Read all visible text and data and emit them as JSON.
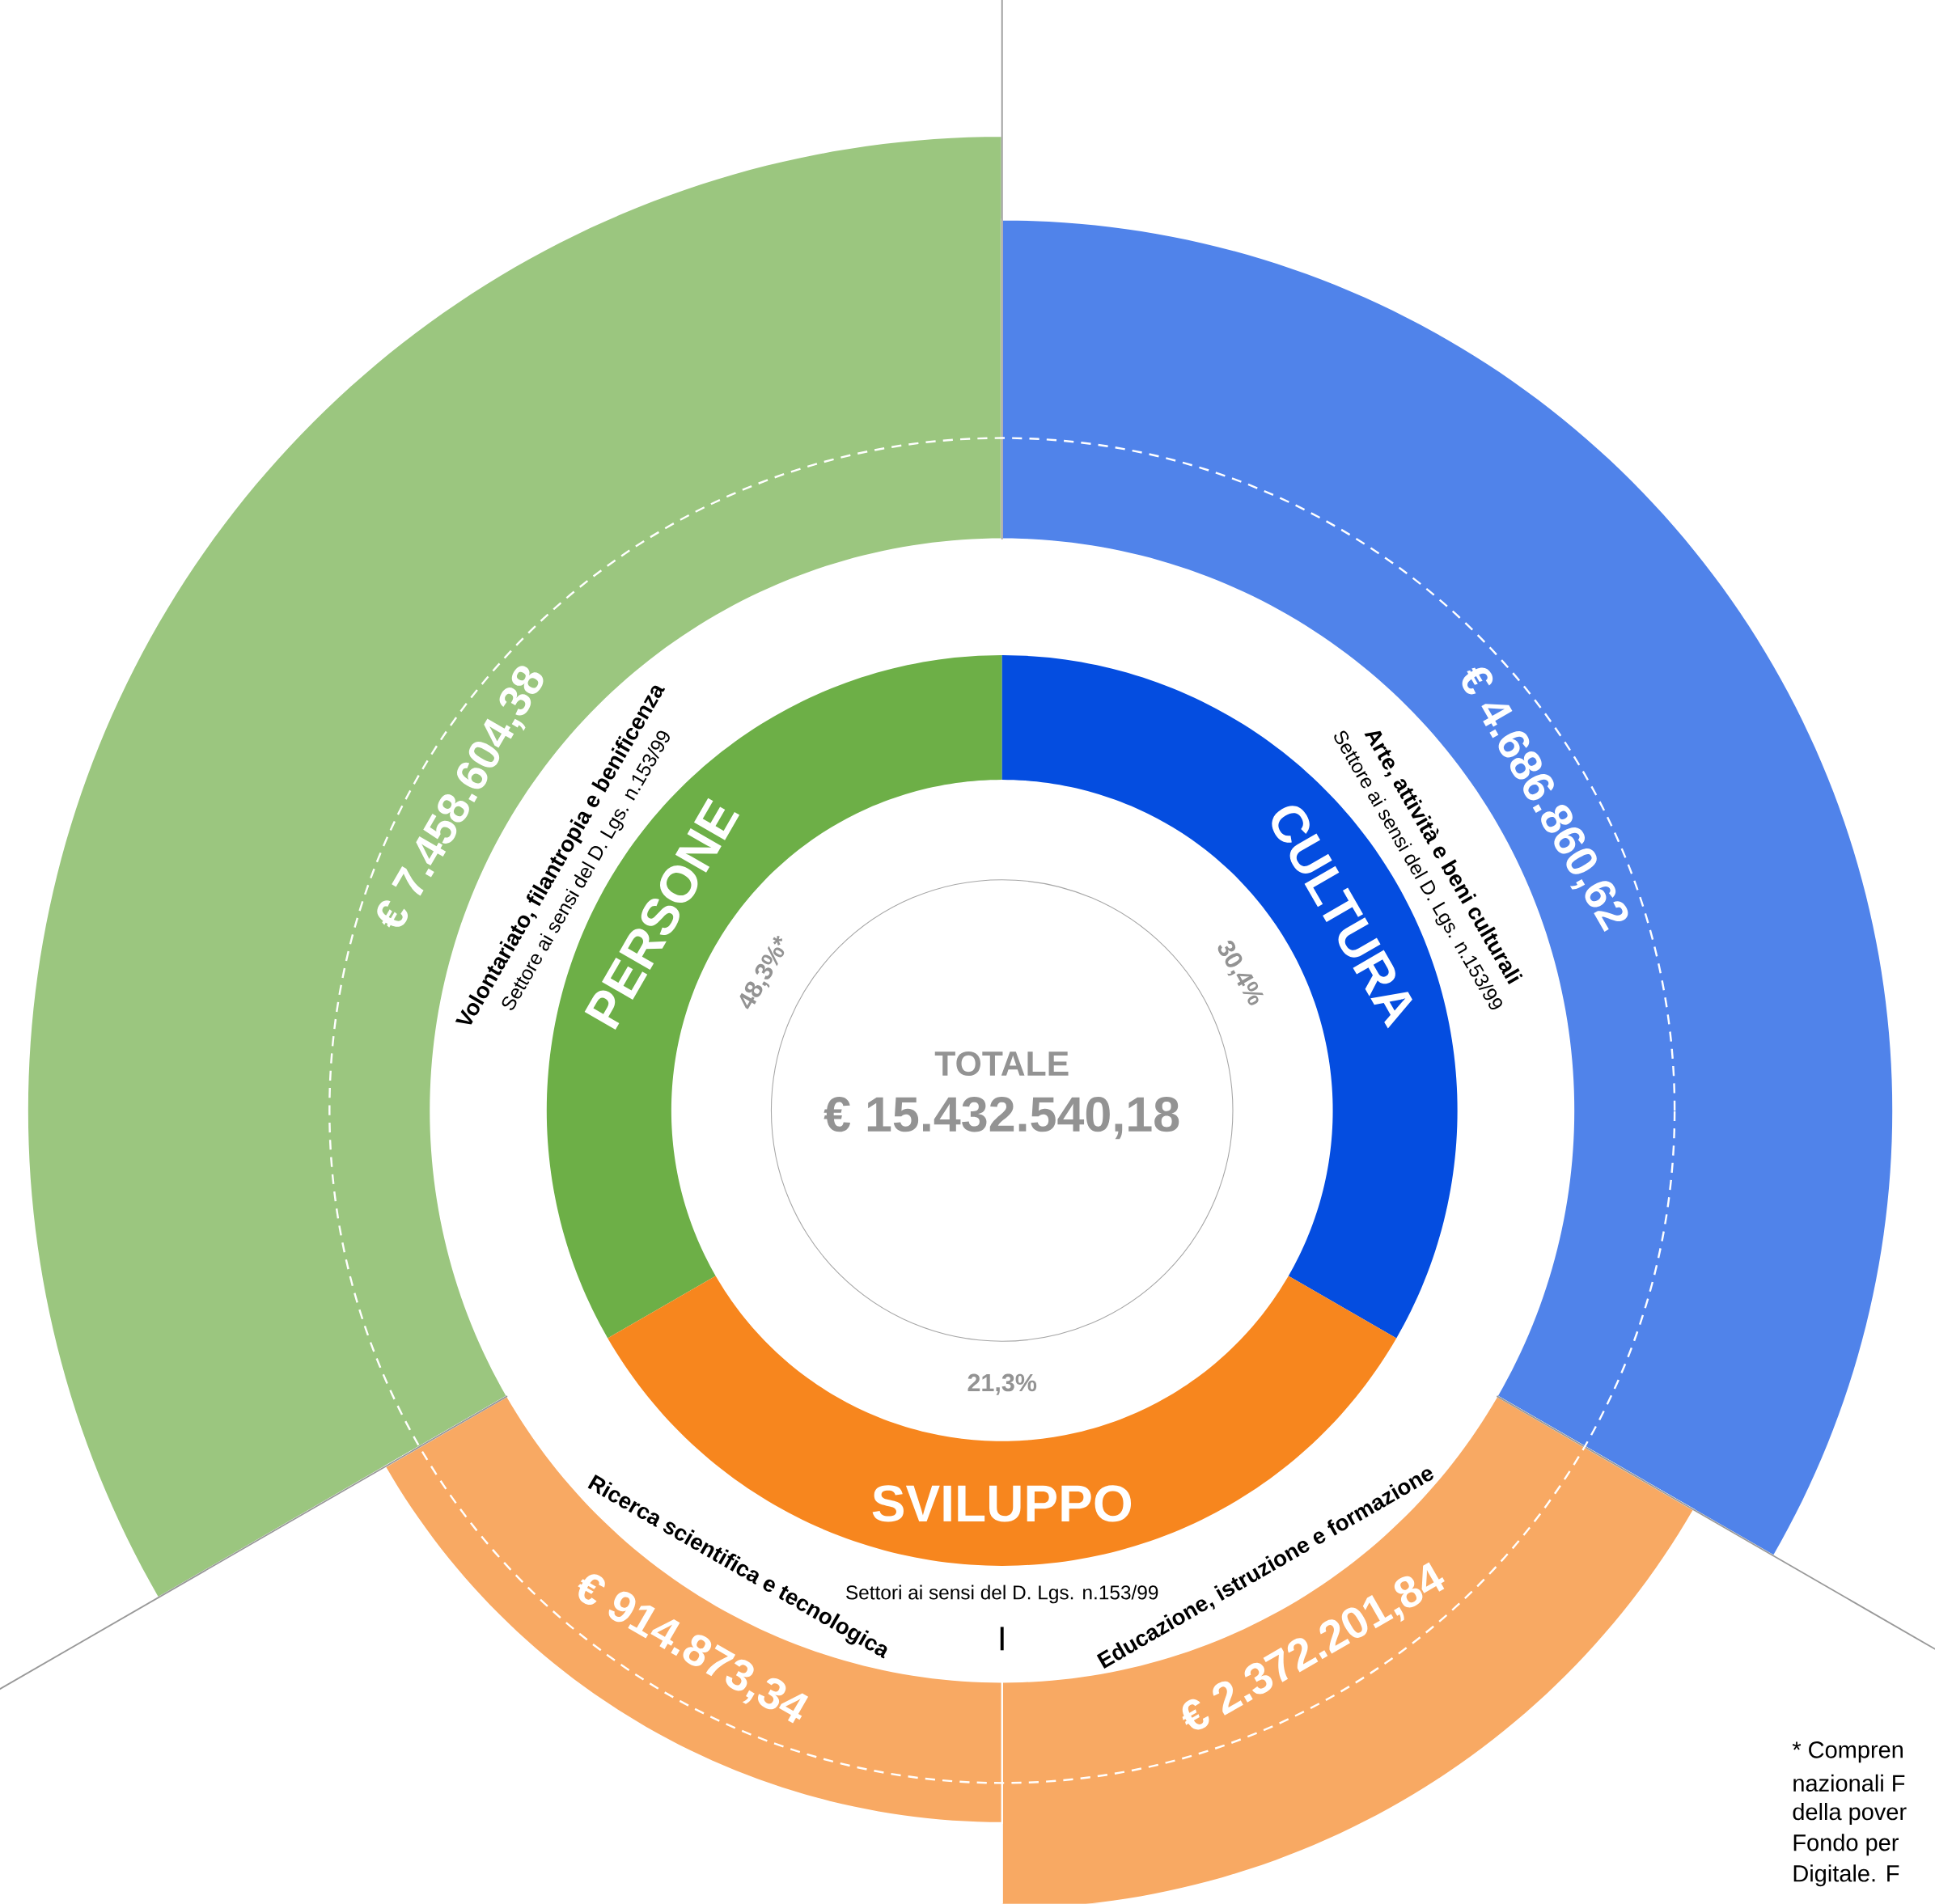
{
  "chart_data": {
    "type": "other",
    "title": "TOTALE",
    "subtitle": "€ 15.432.540,18",
    "categories": [
      "PERSONE",
      "CULTURA",
      "SVILUPPO"
    ],
    "colors": [
      "#6daf47",
      "#044de0",
      "#f7861e"
    ],
    "series": [
      {
        "name": "Volontariato, filantropia e benificenza",
        "color": "#9bc67f",
        "values": [
          7458604.38,
          null,
          null
        ],
        "value_labels": [
          "€ 7.458.604,38",
          null,
          null
        ]
      },
      {
        "name": "Arte, attività e beni culturali",
        "color": "#5083ea",
        "values": [
          null,
          4686860.62,
          null
        ],
        "value_labels": [
          null,
          "€ 4.686.860,62",
          null
        ]
      },
      {
        "name": "Educazione, istruzione e formazione",
        "color": "#f8a963",
        "values": [
          null,
          null,
          2372201.84
        ],
        "value_labels": [
          null,
          null,
          "€ 2.372.201,84"
        ]
      },
      {
        "name": "Ricerca scientifica e tecnologica",
        "color": "#f8a963",
        "values": [
          null,
          null,
          914873.34
        ],
        "value_labels": [
          null,
          null,
          "€ 914.873,34"
        ]
      }
    ],
    "annotations": [
      "48,3%*",
      "30,4%",
      "21,3%",
      "Settore ai sensi del D. Lgs. n.153/99",
      "Settore ai sensi del D. Lgs. n.153/99",
      "Settori ai sensi del D. Lgs. n.153/99",
      "|",
      "* Compren",
      "nazionali F",
      "della pover",
      "Fondo per",
      "Digitale. F"
    ]
  }
}
